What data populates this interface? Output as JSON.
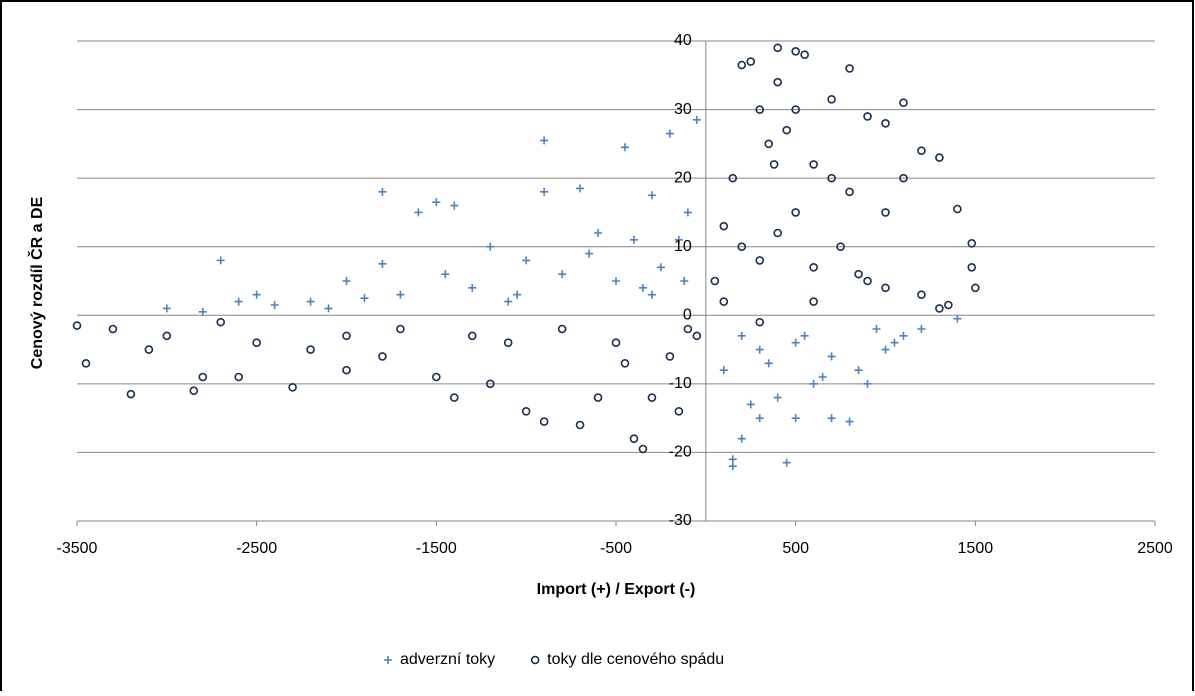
{
  "chart_data": {
    "type": "scatter",
    "x_label": "Import (+) / Export (-)",
    "y_label": "Cenový rozdíl ČR a DE",
    "xlim": [
      -3500,
      2500
    ],
    "xticks": [
      -3500,
      -2500,
      -1500,
      -500,
      500,
      1500,
      2500
    ],
    "ylim": [
      -30,
      40
    ],
    "yticks": [
      -30,
      -20,
      -10,
      0,
      10,
      20,
      30,
      40
    ],
    "grid": true,
    "legend": "bottom",
    "series": [
      {
        "name": "adverzní toky",
        "color": "#4f81bd",
        "marker": "plus",
        "x": [
          -900,
          -200,
          -450,
          -1800,
          -1600,
          -1500,
          -1400,
          -700,
          -900,
          -300,
          -2700,
          -1800,
          -1200,
          -2000,
          -2500,
          -3000,
          -2200,
          -1000,
          -600,
          -400,
          -100,
          -50,
          -150,
          -800,
          -1300,
          -500,
          -300,
          -1100,
          -2800,
          -1700,
          -2400,
          -1900,
          -1450,
          -650,
          -250,
          -120,
          -350,
          -1050,
          -2100,
          -2600,
          150,
          150,
          450,
          200,
          300,
          500,
          700,
          800,
          600,
          400,
          250,
          100,
          900,
          1000,
          1100,
          1200,
          300,
          500,
          700,
          850,
          1400,
          200,
          350,
          550,
          650,
          950,
          1050
        ],
        "values": [
          25.5,
          26.5,
          24.5,
          18,
          15,
          16.5,
          16,
          18.5,
          18,
          17.5,
          8,
          7.5,
          10,
          5,
          3,
          1,
          2,
          8,
          12,
          11,
          15,
          28.5,
          11,
          6,
          4,
          5,
          3,
          2,
          0.5,
          3,
          1.5,
          2.5,
          6,
          9,
          7,
          5,
          4,
          3,
          1,
          2,
          -22,
          -21,
          -21.5,
          -18,
          -15,
          -15,
          -15,
          -15.5,
          -10,
          -12,
          -13,
          -8,
          -10,
          -5,
          -3,
          -2,
          -5,
          -4,
          -6,
          -8,
          -0.5,
          -3,
          -7,
          -3,
          -9,
          -2,
          -4
        ]
      },
      {
        "name": "toky dle cenového spádu",
        "color": "#1a2e4c",
        "marker": "circle",
        "x": [
          -3500,
          -3450,
          -3200,
          -3100,
          -2850,
          -2800,
          -2600,
          -2300,
          -2000,
          -1500,
          -1400,
          -1200,
          -900,
          -1000,
          -700,
          -600,
          -350,
          -400,
          -300,
          -150,
          -3000,
          -2500,
          -2000,
          -1700,
          -1300,
          -800,
          -500,
          -200,
          -100,
          -3300,
          -2700,
          -2200,
          -1800,
          -1100,
          -450,
          -50,
          400,
          500,
          550,
          200,
          250,
          400,
          800,
          700,
          1100,
          300,
          500,
          1000,
          900,
          1200,
          1300,
          1400,
          1480,
          1480,
          1500,
          1300,
          1350,
          100,
          150,
          350,
          600,
          700,
          800,
          1000,
          1100,
          200,
          300,
          400,
          500,
          600,
          900,
          1200,
          50,
          100,
          300,
          600,
          1000,
          450,
          380,
          750,
          850
        ],
        "values": [
          -1.5,
          -7,
          -11.5,
          -5,
          -11,
          -9,
          -9,
          -10.5,
          -8,
          -9,
          -12,
          -10,
          -15.5,
          -14,
          -16,
          -12,
          -19.5,
          -18,
          -12,
          -14,
          -3,
          -4,
          -3,
          -2,
          -3,
          -2,
          -4,
          -6,
          -2,
          -2,
          -1,
          -5,
          -6,
          -4,
          -7,
          -3,
          39,
          38.5,
          38,
          36.5,
          37,
          34,
          36,
          31.5,
          31,
          30,
          30,
          28,
          29,
          24,
          23,
          15.5,
          10.5,
          7,
          4,
          1,
          1.5,
          13,
          20,
          25,
          22,
          20,
          18,
          15,
          20,
          10,
          8,
          12,
          15,
          7,
          5,
          3,
          5,
          2,
          -1,
          2,
          4,
          27,
          22,
          10,
          6
        ]
      }
    ]
  }
}
